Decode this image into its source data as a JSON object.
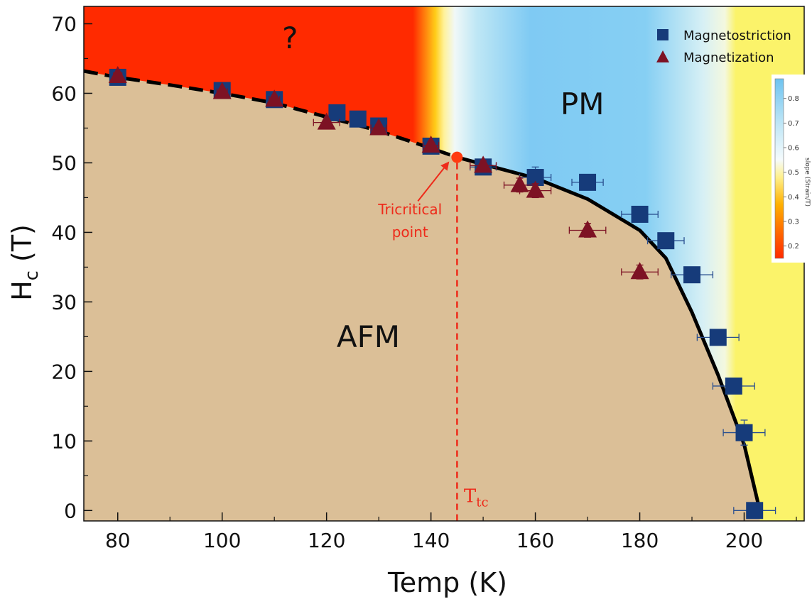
{
  "chart_data": {
    "type": "scatter",
    "title": "",
    "xlabel": "Temp (K)",
    "ylabel": "H",
    "ylabel_sub": "c",
    "ylabel_unit": " (T)",
    "xlim": [
      73.5,
      211.5
    ],
    "ylim": [
      -1.5,
      72.5
    ],
    "x_ticks": [
      80,
      100,
      120,
      140,
      160,
      180,
      200
    ],
    "y_ticks": [
      0,
      10,
      20,
      30,
      40,
      50,
      60,
      70
    ],
    "grid": false,
    "legend_position": "top-right",
    "series": [
      {
        "name": "Magnetostriction",
        "marker": "square",
        "color": "#163b7a",
        "points": [
          {
            "x": 80,
            "y": 62.3,
            "xerr": 0.8,
            "yerr": 0.5
          },
          {
            "x": 100,
            "y": 60.4,
            "xerr": 1.0,
            "yerr": 0.5
          },
          {
            "x": 110,
            "y": 59.1,
            "xerr": 1.0,
            "yerr": 0.5
          },
          {
            "x": 122,
            "y": 57.2,
            "xerr": 1.5,
            "yerr": 0.5
          },
          {
            "x": 126,
            "y": 56.3,
            "xerr": 1.5,
            "yerr": 0.5
          },
          {
            "x": 130,
            "y": 55.3,
            "xerr": 1.5,
            "yerr": 0.5
          },
          {
            "x": 140,
            "y": 52.4,
            "xerr": 1.5,
            "yerr": 0.5
          },
          {
            "x": 150,
            "y": 49.4,
            "xerr": 2.5,
            "yerr": 0.7
          },
          {
            "x": 160,
            "y": 47.9,
            "xerr": 3.0,
            "yerr": 1.5
          },
          {
            "x": 170,
            "y": 47.2,
            "xerr": 3.0,
            "yerr": 1.0
          },
          {
            "x": 180,
            "y": 42.6,
            "xerr": 3.5,
            "yerr": 1.0
          },
          {
            "x": 185,
            "y": 38.8,
            "xerr": 3.5,
            "yerr": 1.0
          },
          {
            "x": 190,
            "y": 33.9,
            "xerr": 4.0,
            "yerr": 1.0
          },
          {
            "x": 195,
            "y": 24.9,
            "xerr": 4.0,
            "yerr": 1.0
          },
          {
            "x": 198,
            "y": 17.9,
            "xerr": 4.0,
            "yerr": 1.0
          },
          {
            "x": 200,
            "y": 11.2,
            "xerr": 4.0,
            "yerr": 1.8
          },
          {
            "x": 202,
            "y": 0.0,
            "xerr": 4.0,
            "yerr": 1.0
          }
        ]
      },
      {
        "name": "Magnetization",
        "marker": "triangle",
        "color": "#7d1224",
        "points": [
          {
            "x": 80,
            "y": 62.5,
            "xerr": 0.8,
            "yerr": 0.5
          },
          {
            "x": 100,
            "y": 60.2,
            "xerr": 1.0,
            "yerr": 0.5
          },
          {
            "x": 110,
            "y": 59.1,
            "xerr": 1.0,
            "yerr": 0.5
          },
          {
            "x": 120,
            "y": 55.8,
            "xerr": 2.5,
            "yerr": 0.5
          },
          {
            "x": 130,
            "y": 55.0,
            "xerr": 1.5,
            "yerr": 0.5
          },
          {
            "x": 140,
            "y": 52.5,
            "xerr": 1.5,
            "yerr": 0.5
          },
          {
            "x": 150,
            "y": 49.6,
            "xerr": 2.5,
            "yerr": 0.7
          },
          {
            "x": 157,
            "y": 46.8,
            "xerr": 3.0,
            "yerr": 1.0
          },
          {
            "x": 160,
            "y": 46.0,
            "xerr": 3.0,
            "yerr": 1.0
          },
          {
            "x": 170,
            "y": 40.3,
            "xerr": 3.5,
            "yerr": 1.0
          },
          {
            "x": 180,
            "y": 34.3,
            "xerr": 3.5,
            "yerr": 1.0
          }
        ]
      }
    ],
    "phase_boundary": {
      "dashed_until_x": 145,
      "points": [
        [
          73.5,
          63.2
        ],
        [
          80,
          62.3
        ],
        [
          90,
          61.2
        ],
        [
          100,
          60.0
        ],
        [
          110,
          58.6
        ],
        [
          120,
          56.6
        ],
        [
          130,
          54.6
        ],
        [
          140,
          52.1
        ],
        [
          145,
          50.8
        ],
        [
          150,
          49.8
        ],
        [
          160,
          47.8
        ],
        [
          170,
          44.8
        ],
        [
          180,
          40.3
        ],
        [
          185,
          36.3
        ],
        [
          190,
          28.5
        ],
        [
          195,
          19.5
        ],
        [
          200,
          9.5
        ],
        [
          203,
          0
        ]
      ]
    },
    "regions": [
      {
        "label": "?",
        "x": 113,
        "y": 66.5
      },
      {
        "label": "PM",
        "x": 169,
        "y": 57
      },
      {
        "label": "AFM",
        "x": 128,
        "y": 23.5
      }
    ],
    "tricritical": {
      "x": 145,
      "y": 50.8,
      "label_line1": "Tricritical",
      "label_line2": "point",
      "label_x": 136,
      "label_y": 42.6,
      "arrow_from": [
        137.5,
        44.5
      ],
      "arrow_to": [
        143.5,
        50.2
      ]
    },
    "ttc": {
      "label": "T",
      "sub": "tc",
      "x": 146.3,
      "y": 1.2
    },
    "colorbar": {
      "label": "slope (Strain/T)",
      "range": [
        0.15,
        0.88
      ],
      "ticks": [
        "0.2",
        "0.3",
        "0.4",
        "0.5",
        "0.6",
        "0.7",
        "0.8"
      ],
      "tick_values": [
        0.2,
        0.3,
        0.4,
        0.5,
        0.6,
        0.7,
        0.8
      ]
    },
    "colors": {
      "afm": "#dbbf97",
      "red": "#ff2a00",
      "yellow": "#fbf36a",
      "blue": "#75c6f2",
      "boundary": "#000000",
      "annotation": "#ee2a1a"
    }
  }
}
